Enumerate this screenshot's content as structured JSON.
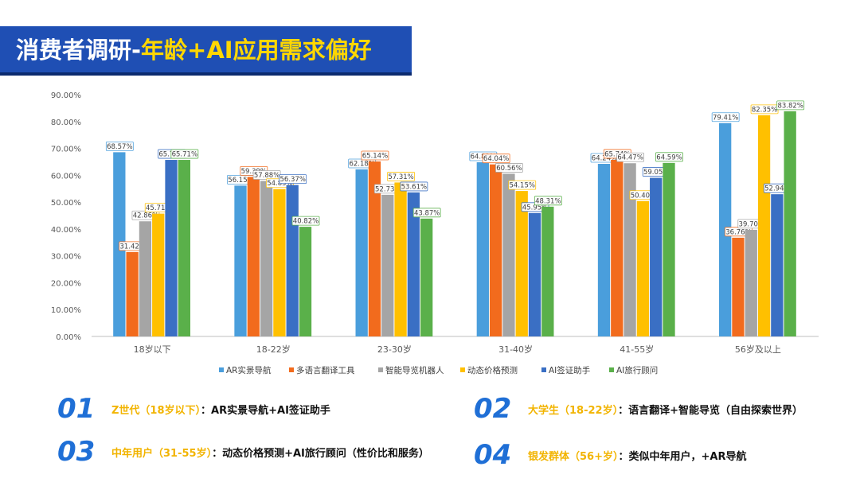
{
  "title": {
    "prefix": "消费者调研-",
    "highlight": "年龄+AI应用需求偏好"
  },
  "chart_data": {
    "type": "bar",
    "categories": [
      "18岁以下",
      "18-22岁",
      "23-30岁",
      "31-40岁",
      "41-55岁",
      "56岁及以上"
    ],
    "series": [
      {
        "name": "AR实景导航",
        "color": "#4A9EDC",
        "values": [
          68.57,
          56.15,
          62.18,
          64.83,
          64.24,
          79.41
        ]
      },
      {
        "name": "多语言翻译工具",
        "color": "#F26B1D",
        "values": [
          31.42,
          59.39,
          65.14,
          64.04,
          65.74,
          36.76
        ]
      },
      {
        "name": "智能导览机器人",
        "color": "#A5A5A5",
        "values": [
          42.86,
          57.88,
          52.73,
          60.56,
          64.47,
          39.7
        ]
      },
      {
        "name": "动态价格预测",
        "color": "#FFC000",
        "values": [
          45.71,
          54.85,
          57.31,
          54.15,
          50.4,
          82.35
        ]
      },
      {
        "name": "AI签证助手",
        "color": "#3A6FC4",
        "values": [
          65.71,
          56.37,
          53.61,
          45.95,
          59.05,
          52.94
        ]
      },
      {
        "name": "AI旅行顾问",
        "color": "#5AB04A",
        "values": [
          65.71,
          40.82,
          43.87,
          48.31,
          64.59,
          83.82
        ]
      }
    ],
    "data_labels": [
      [
        "68.57%",
        "56.15%",
        "62.18%",
        "64.83%",
        "64.24%",
        "79.41%"
      ],
      [
        "31.42%",
        "59.39%",
        "65.14%",
        "64.04%",
        "65.74%",
        "36.76%"
      ],
      [
        "42.86%",
        "57.88%",
        "52.73%",
        "60.56%",
        "64.47%",
        "39.70%"
      ],
      [
        "45.71%",
        "54.85%",
        "57.31%",
        "54.15%",
        "50.40%",
        "82.35%"
      ],
      [
        "65.71%",
        "56.37%",
        "53.61%",
        "45.95%",
        "59.05%",
        "52.94%"
      ],
      [
        "65.71%",
        "40.82%",
        "43.87%",
        "48.31%",
        "64.59%",
        "83.82%"
      ]
    ],
    "y_ticks": [
      "0.00%",
      "10.00%",
      "20.00%",
      "30.00%",
      "40.00%",
      "50.00%",
      "60.00%",
      "70.00%",
      "80.00%",
      "90.00%"
    ],
    "ylim": [
      0,
      90
    ],
    "grid": false,
    "legend_position": "bottom"
  },
  "points": [
    {
      "num": "01",
      "label": "Z世代（18岁以下）",
      "sep": "：",
      "text": "AR实景导航+AI签证助手"
    },
    {
      "num": "02",
      "label": "大学生（18-22岁）",
      "sep": "：",
      "text": "语言翻译+智能导览（自由探索世界）"
    },
    {
      "num": "03",
      "label": "中年用户（31-55岁）",
      "sep": "：",
      "text": "动态价格预测+AI旅行顾问（性价比和服务）"
    },
    {
      "num": "04",
      "label": "银发群体（56+岁）",
      "sep": "：",
      "text": "类似中年用户，+AR导航"
    }
  ]
}
